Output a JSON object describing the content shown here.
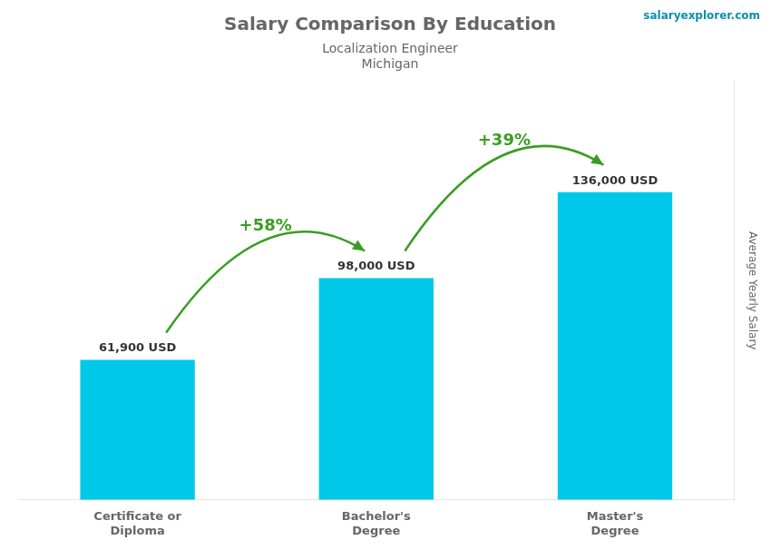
{
  "chart_data": {
    "type": "bar",
    "title": "Salary Comparison By Education",
    "subtitle": "Localization Engineer",
    "location": "Michigan",
    "source": "salaryexplorer.com",
    "categories": [
      "Certificate or\nDiploma",
      "Bachelor's\nDegree",
      "Master's\nDegree"
    ],
    "values": [
      61900,
      98000,
      136000
    ],
    "value_labels": [
      "61,900 USD",
      "98,000 USD",
      "136,000 USD"
    ],
    "data_labels": true,
    "annotations": [
      "+58%",
      "+39%"
    ],
    "ylabel": "Average Yearly Salary",
    "color": "#00c8e8",
    "ylim": [
      0,
      185000
    ],
    "grid": false,
    "tick_labels": "x"
  }
}
